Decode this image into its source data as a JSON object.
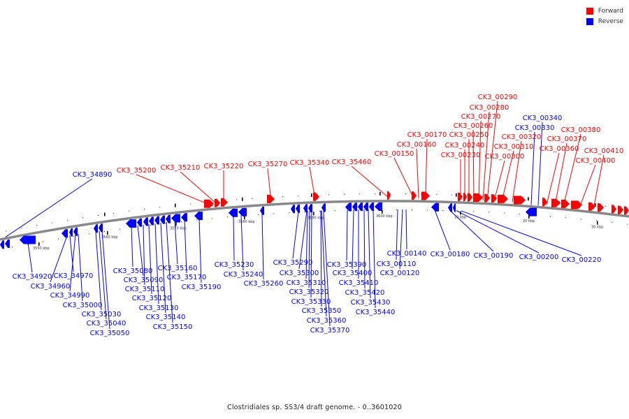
{
  "legend": {
    "forward_label": "Forward",
    "reverse_label": "Reverse",
    "forward_color": "#ff0000",
    "reverse_color": "#0000ff"
  },
  "caption": "Clostridiales sp. SS3/4 draft genome. - 0..3601020",
  "ticks": [
    "3550 kbp",
    "3560 kbp",
    "3570 kbp",
    "3580 kbp",
    "3590 kbp",
    "3600 kbp",
    "10 kbp",
    "20 kbp",
    "30 kbp"
  ],
  "forward_genes": [
    "CK3_35200",
    "CK3_35210",
    "CK3_35220",
    "CK3_35270",
    "CK3_35340",
    "CK3_35460",
    "CK3_00150",
    "CK3_00160",
    "CK3_00170",
    "CK3_00230",
    "CK3_00240",
    "CK3_00250",
    "CK3_00260",
    "CK3_00270",
    "CK3_00280",
    "CK3_00290",
    "CK3_00300",
    "CK3_00310",
    "CK3_00320",
    "CK3_00360",
    "CK3_00370",
    "CK3_00380",
    "CK3_00400",
    "CK3_00410"
  ],
  "reverse_genes_top": [
    "CK3_34890",
    "CK3_00330",
    "CK3_00340"
  ],
  "reverse_genes_bottom": [
    "CK3_34920",
    "CK3_34960",
    "CK3_34970",
    "CK3_34990",
    "CK3_35000",
    "CK3_35030",
    "CK3_35040",
    "CK3_35050",
    "CK3_35080",
    "CK3_35090",
    "CK3_35110",
    "CK3_35120",
    "CK3_35130",
    "CK3_35140",
    "CK3_35150",
    "CK3_35160",
    "CK3_35170",
    "CK3_35190",
    "CK3_35230",
    "CK3_35240",
    "CK3_35260",
    "CK3_35290",
    "CK3_35300",
    "CK3_35310",
    "CK3_35320",
    "CK3_35330",
    "CK3_35350",
    "CK3_35360",
    "CK3_35370",
    "CK3_35390",
    "CK3_35400",
    "CK3_35410",
    "CK3_35420",
    "CK3_35430",
    "CK3_35440",
    "CK3_00110",
    "CK3_00120",
    "CK3_00140",
    "CK3_00180",
    "CK3_00190",
    "CK3_00200",
    "CK3_00220"
  ]
}
